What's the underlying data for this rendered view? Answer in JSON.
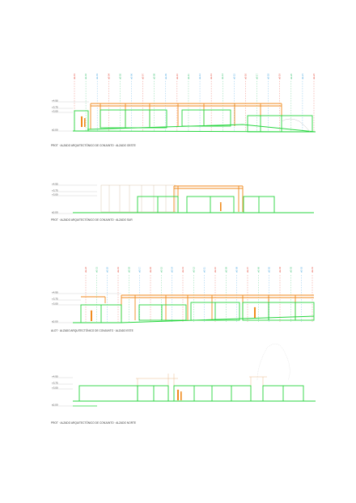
{
  "colors": {
    "structure": "#f08a1c",
    "glazing": "#27d63f",
    "ground": "#27d63f",
    "axis_red": "#e23a2a",
    "axis_green": "#2fbf6a",
    "axis_blue": "#3aa0e0",
    "figure": "#f08a1c",
    "faint": "#d9c7b0",
    "tree": "#bcbcbc"
  },
  "levels": [
    "+4.90",
    "+3.75",
    "+3.00",
    "±0.00"
  ],
  "elevations": [
    {
      "id": "oeste",
      "caption": "PROT · ALZADO ARQUITECTÓNICO DE CONJUNTO · ALZADO OESTE",
      "axes": [
        "eE-01",
        "eE-02",
        "eE-03",
        "eE-04",
        "eE-05",
        "eE-06",
        "eE-07",
        "eE-08",
        "eE-09",
        "eE-10",
        "eE-11",
        "eE-12",
        "eE-13",
        "eE-14",
        "eE-15",
        "eE-16",
        "eE-17",
        "eE-18",
        "eE-19",
        "eE-20",
        "eE-21",
        "eE-22"
      ],
      "figures": 2
    },
    {
      "id": "sur",
      "caption": "PROT · ALZADO ARQUITECTÓNICO DE CONJUNTO · ALZADO SUR",
      "axes": [],
      "figures": 1
    },
    {
      "id": "este",
      "caption": "ALOT · ALZADO ARQUITECTÓNICO DE CONJUNTO · ALZADO ESTE",
      "axes": [
        "eE-22",
        "eE-21",
        "eE-20",
        "eE-19",
        "eE-18",
        "eE-17",
        "eE-16",
        "eE-15",
        "eE-14",
        "eE-13",
        "eE-12",
        "eE-11",
        "eE-10",
        "eE-09",
        "eE-08",
        "eE-07",
        "eE-06",
        "eE-05",
        "eE-04",
        "eE-03",
        "eE-02",
        "eE-01"
      ],
      "figures": 2
    },
    {
      "id": "norte",
      "caption": "PROT · ALZADO ARQUITECTÓNICO DE CONJUNTO · ALZADO NORTE",
      "axes": [],
      "figures": 2
    }
  ]
}
